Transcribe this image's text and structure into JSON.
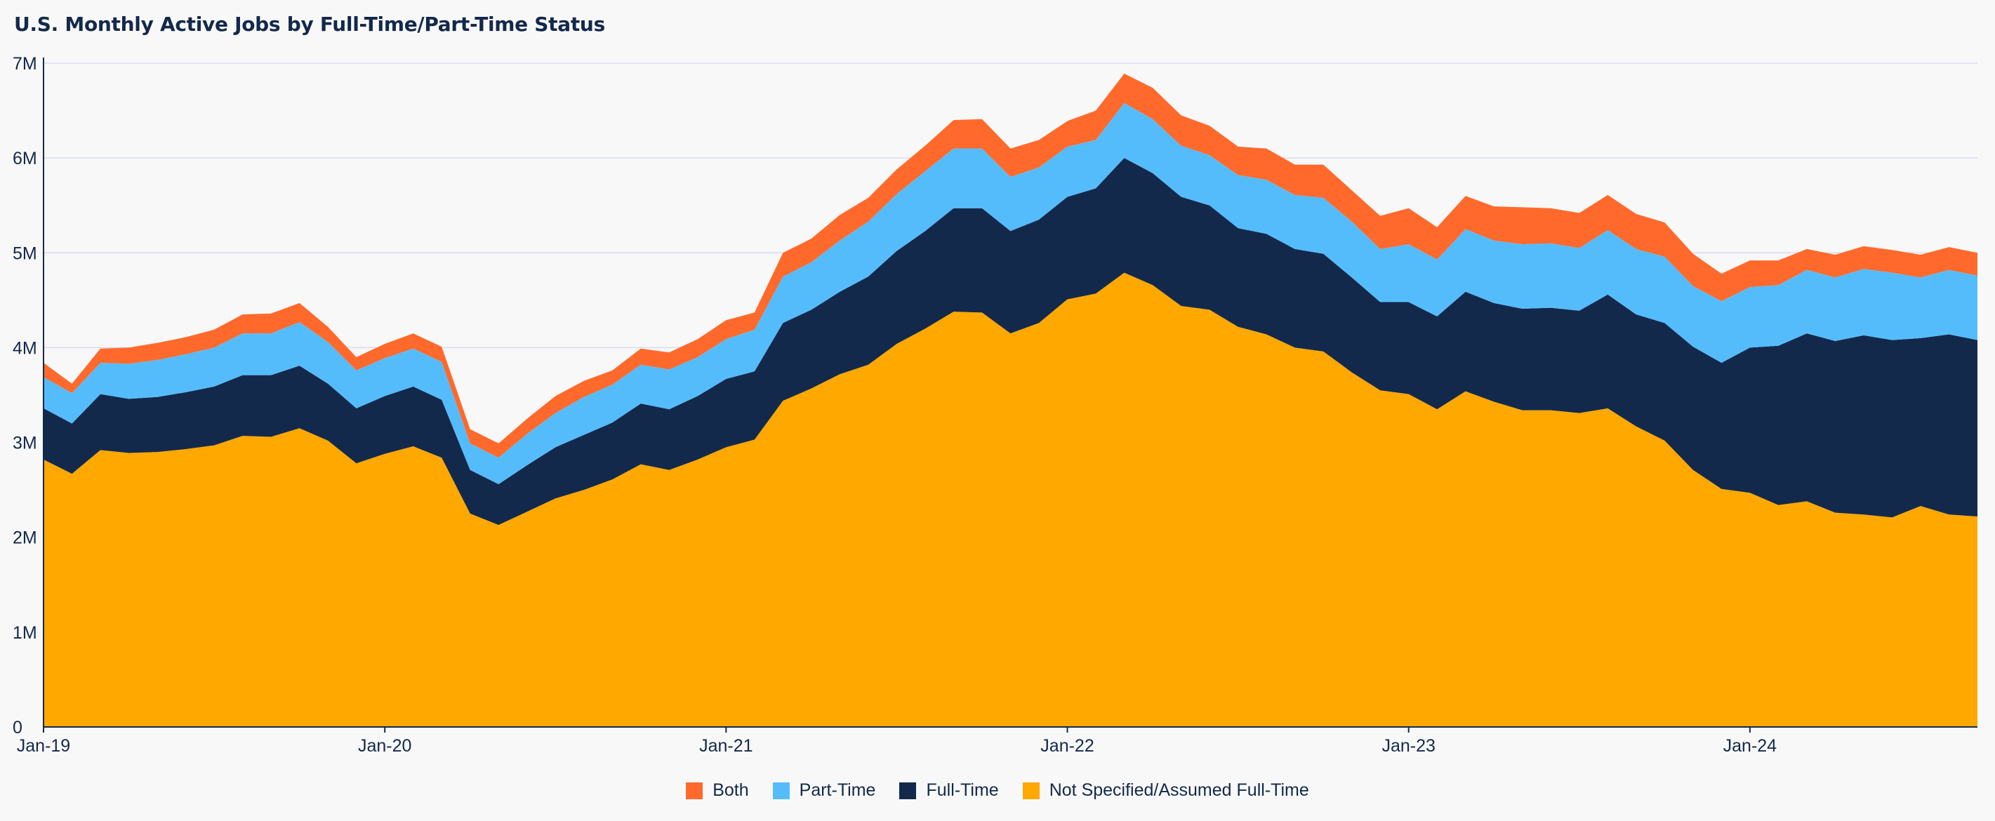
{
  "title": "U.S. Monthly Active Jobs by Full-Time/Part-Time Status",
  "chart_data": {
    "type": "area",
    "stacked": true,
    "title": "U.S. Monthly Active Jobs by Full-Time/Part-Time Status",
    "xlabel": "",
    "ylabel": "",
    "x_start": "2019-01",
    "x_end": "2024-09",
    "x_frequency": "monthly",
    "x_ticks": [
      "Jan-19",
      "Jan-20",
      "Jan-21",
      "Jan-22",
      "Jan-23",
      "Jan-24"
    ],
    "y_ticks": [
      "0",
      "1M",
      "2M",
      "3M",
      "4M",
      "5M",
      "6M",
      "7M"
    ],
    "ylim": [
      0,
      7000000
    ],
    "grid": true,
    "legend_position": "bottom-center",
    "series": [
      {
        "name": "Not Specified/Assumed Full-Time",
        "color": "#ffa800",
        "values": [
          2820000,
          2670000,
          2920000,
          2890000,
          2900000,
          2930000,
          2970000,
          3070000,
          3060000,
          3150000,
          3020000,
          2780000,
          2880000,
          2960000,
          2840000,
          2250000,
          2130000,
          2270000,
          2410000,
          2500000,
          2610000,
          2770000,
          2710000,
          2820000,
          2950000,
          3030000,
          3440000,
          3570000,
          3720000,
          3820000,
          4040000,
          4200000,
          4380000,
          4370000,
          4150000,
          4260000,
          4510000,
          4570000,
          4790000,
          4660000,
          4440000,
          4400000,
          4220000,
          4140000,
          4000000,
          3960000,
          3740000,
          3550000,
          3510000,
          3350000,
          3540000,
          3430000,
          3340000,
          3340000,
          3310000,
          3360000,
          3170000,
          3020000,
          2710000,
          2510000,
          2470000,
          2340000,
          2380000,
          2260000,
          2240000,
          2210000,
          2330000,
          2240000,
          2220000
        ]
      },
      {
        "name": "Full-Time",
        "color": "#13294b",
        "values": [
          540000,
          530000,
          590000,
          570000,
          580000,
          600000,
          620000,
          640000,
          650000,
          660000,
          600000,
          580000,
          610000,
          630000,
          610000,
          460000,
          430000,
          490000,
          540000,
          580000,
          600000,
          640000,
          640000,
          670000,
          720000,
          720000,
          820000,
          830000,
          870000,
          930000,
          980000,
          1030000,
          1090000,
          1100000,
          1080000,
          1090000,
          1080000,
          1110000,
          1210000,
          1180000,
          1150000,
          1100000,
          1040000,
          1060000,
          1040000,
          1030000,
          1000000,
          930000,
          970000,
          980000,
          1050000,
          1040000,
          1070000,
          1080000,
          1080000,
          1200000,
          1180000,
          1240000,
          1300000,
          1330000,
          1530000,
          1680000,
          1770000,
          1810000,
          1890000,
          1870000,
          1770000,
          1900000,
          1860000
        ]
      },
      {
        "name": "Part-Time",
        "color": "#55bcfc",
        "values": [
          330000,
          320000,
          330000,
          370000,
          390000,
          400000,
          410000,
          440000,
          440000,
          460000,
          440000,
          400000,
          400000,
          400000,
          400000,
          280000,
          280000,
          330000,
          360000,
          400000,
          400000,
          410000,
          420000,
          410000,
          420000,
          440000,
          490000,
          500000,
          540000,
          580000,
          600000,
          630000,
          630000,
          630000,
          570000,
          550000,
          530000,
          510000,
          580000,
          570000,
          540000,
          530000,
          560000,
          570000,
          570000,
          590000,
          590000,
          560000,
          610000,
          600000,
          660000,
          660000,
          680000,
          680000,
          660000,
          680000,
          690000,
          700000,
          640000,
          650000,
          640000,
          640000,
          670000,
          670000,
          700000,
          710000,
          640000,
          680000,
          680000
        ]
      },
      {
        "name": "Both",
        "color": "#ff6a2c",
        "values": [
          150000,
          100000,
          150000,
          170000,
          180000,
          180000,
          190000,
          200000,
          210000,
          200000,
          160000,
          140000,
          150000,
          160000,
          160000,
          150000,
          150000,
          160000,
          180000,
          170000,
          150000,
          170000,
          180000,
          190000,
          200000,
          180000,
          250000,
          250000,
          270000,
          250000,
          260000,
          270000,
          300000,
          310000,
          300000,
          290000,
          270000,
          310000,
          310000,
          330000,
          320000,
          310000,
          300000,
          330000,
          320000,
          350000,
          330000,
          350000,
          380000,
          340000,
          350000,
          360000,
          390000,
          370000,
          370000,
          370000,
          370000,
          360000,
          340000,
          290000,
          280000,
          260000,
          220000,
          240000,
          240000,
          240000,
          240000,
          240000,
          240000
        ]
      }
    ],
    "legend_order": [
      "Both",
      "Part-Time",
      "Full-Time",
      "Not Specified/Assumed Full-Time"
    ],
    "legend": [
      {
        "name": "Both",
        "color": "#ff6a2c"
      },
      {
        "name": "Part-Time",
        "color": "#55bcfc"
      },
      {
        "name": "Full-Time",
        "color": "#13294b"
      },
      {
        "name": "Not Specified/Assumed Full-Time",
        "color": "#ffa800"
      }
    ]
  }
}
